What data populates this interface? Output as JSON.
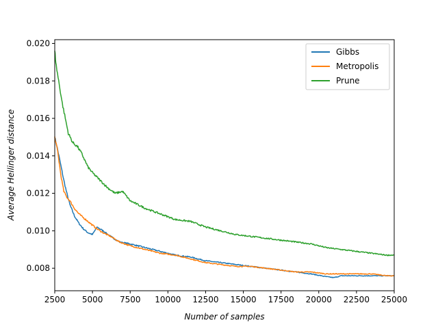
{
  "chart_data": {
    "type": "line",
    "title": "",
    "xlabel": "Number of samples",
    "ylabel": "Average Hellinger distance",
    "xlim": [
      2500,
      25000
    ],
    "ylim": [
      0.0068,
      0.0202
    ],
    "xticks": [
      2500,
      5000,
      7500,
      10000,
      12500,
      15000,
      17500,
      20000,
      22500,
      25000
    ],
    "yticks": [
      0.008,
      0.01,
      0.012,
      0.014,
      0.016,
      0.018,
      0.02
    ],
    "xtick_labels": [
      "2500",
      "5000",
      "7500",
      "10000",
      "12500",
      "15000",
      "17500",
      "20000",
      "22500",
      "25000"
    ],
    "ytick_labels": [
      "0.008",
      "0.010",
      "0.012",
      "0.014",
      "0.016",
      "0.018",
      "0.020"
    ],
    "grid": false,
    "legend_position": "top-right",
    "series": [
      {
        "name": "Gibbs",
        "color": "#1f77b4",
        "x": [
          2500,
          2700,
          2900,
          3100,
          3300,
          3500,
          3800,
          4100,
          4400,
          4700,
          5000,
          5300,
          5700,
          6200,
          6800,
          7500,
          8500,
          9500,
          10500,
          11500,
          12500,
          13500,
          14500,
          15500,
          16500,
          17500,
          18500,
          19500,
          20500,
          21000,
          21500,
          22500,
          23500,
          24500,
          25000
        ],
        "y": [
          0.015,
          0.0143,
          0.0135,
          0.0127,
          0.012,
          0.0114,
          0.0108,
          0.0104,
          0.0101,
          0.0099,
          0.0098,
          0.0102,
          0.01,
          0.0097,
          0.0094,
          0.0093,
          0.0091,
          0.0089,
          0.0087,
          0.0086,
          0.0084,
          0.0083,
          0.0082,
          0.0081,
          0.008,
          0.0079,
          0.0078,
          0.0077,
          0.00755,
          0.0075,
          0.0076,
          0.0076,
          0.0076,
          0.0076,
          0.0076
        ]
      },
      {
        "name": "Metropolis",
        "color": "#ff7f0e",
        "x": [
          2500,
          2700,
          2900,
          3100,
          3300,
          3500,
          3800,
          4100,
          4400,
          4700,
          5000,
          5300,
          5700,
          6200,
          6800,
          7500,
          8500,
          9500,
          10500,
          11500,
          12500,
          13500,
          14500,
          15500,
          16500,
          17500,
          18500,
          19500,
          20500,
          21500,
          22500,
          23500,
          24500,
          25000
        ],
        "y": [
          0.015,
          0.0142,
          0.013,
          0.0121,
          0.0118,
          0.0116,
          0.0112,
          0.0109,
          0.0107,
          0.0105,
          0.0103,
          0.0101,
          0.0099,
          0.0097,
          0.0094,
          0.0092,
          0.009,
          0.0088,
          0.0087,
          0.0085,
          0.0083,
          0.0082,
          0.0081,
          0.0081,
          0.008,
          0.0079,
          0.0078,
          0.0078,
          0.0077,
          0.0077,
          0.0077,
          0.0077,
          0.0076,
          0.0076
        ]
      },
      {
        "name": "Prune",
        "color": "#2ca02c",
        "x": [
          2500,
          2600,
          2800,
          3000,
          3200,
          3400,
          3700,
          4000,
          4300,
          4700,
          5000,
          5500,
          6000,
          6500,
          7000,
          7500,
          8500,
          9500,
          10500,
          11500,
          12500,
          13500,
          14500,
          15500,
          16500,
          17500,
          18500,
          19500,
          20500,
          21500,
          22500,
          23500,
          24500,
          25000
        ],
        "y": [
          0.0196,
          0.0188,
          0.0178,
          0.0168,
          0.016,
          0.0152,
          0.0147,
          0.0145,
          0.0141,
          0.0134,
          0.0131,
          0.0127,
          0.0123,
          0.012,
          0.0121,
          0.0116,
          0.0112,
          0.0109,
          0.0106,
          0.0105,
          0.0102,
          0.01,
          0.0098,
          0.0097,
          0.0096,
          0.0095,
          0.0094,
          0.0093,
          0.0091,
          0.009,
          0.0089,
          0.0088,
          0.0087,
          0.0087
        ]
      }
    ]
  }
}
